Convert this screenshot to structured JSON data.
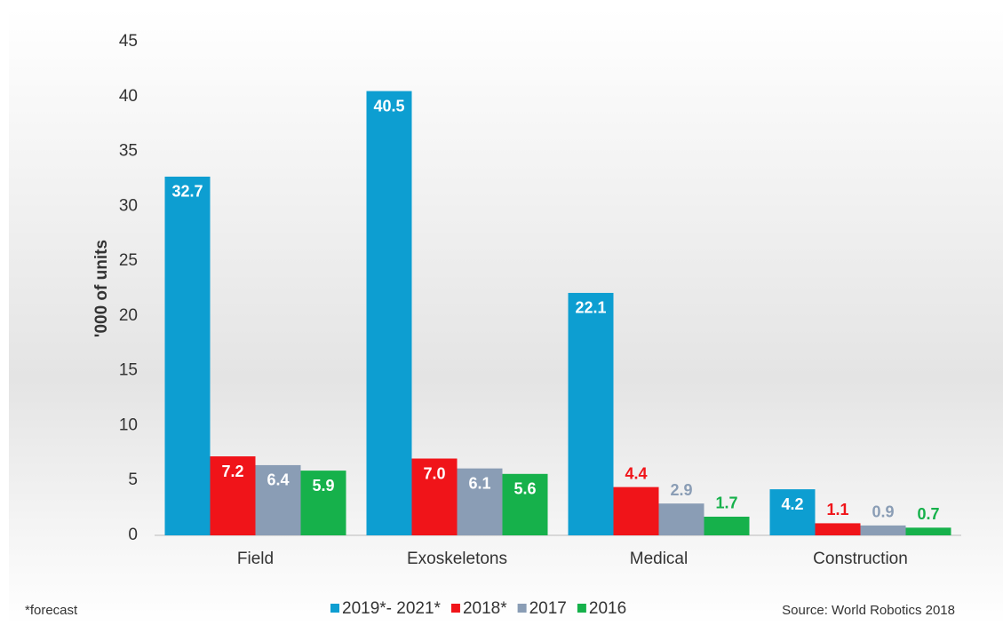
{
  "chart_data": {
    "type": "bar",
    "y_label": "'000 of units",
    "categories": [
      "Field",
      "Exoskeletons",
      "Medical",
      "Construction"
    ],
    "series": [
      {
        "name": "2019*- 2021*",
        "color": "#0d9ed1",
        "values": [
          32.7,
          40.5,
          22.1,
          4.2
        ],
        "value_labels": [
          "32.7",
          "40.5",
          "22.1",
          "4.2"
        ]
      },
      {
        "name": "2018*",
        "color": "#f01419",
        "values": [
          7.2,
          7.0,
          4.4,
          1.1
        ],
        "value_labels": [
          "7.2",
          "7.0",
          "4.4",
          "1.1"
        ]
      },
      {
        "name": "2017",
        "color": "#8a9db5",
        "values": [
          6.4,
          6.1,
          2.9,
          0.9
        ],
        "value_labels": [
          "6.4",
          "6.1",
          "2.9",
          "0.9"
        ]
      },
      {
        "name": "2016",
        "color": "#16b14b",
        "values": [
          5.9,
          5.6,
          1.7,
          0.7
        ],
        "value_labels": [
          "5.9",
          "5.6",
          "1.7",
          "0.7"
        ]
      }
    ],
    "ylim": [
      0,
      45
    ],
    "yticks": [
      0,
      5,
      10,
      15,
      20,
      25,
      30,
      35,
      40,
      45
    ],
    "footnote": "*forecast",
    "source": "Source: World Robotics 2018"
  }
}
